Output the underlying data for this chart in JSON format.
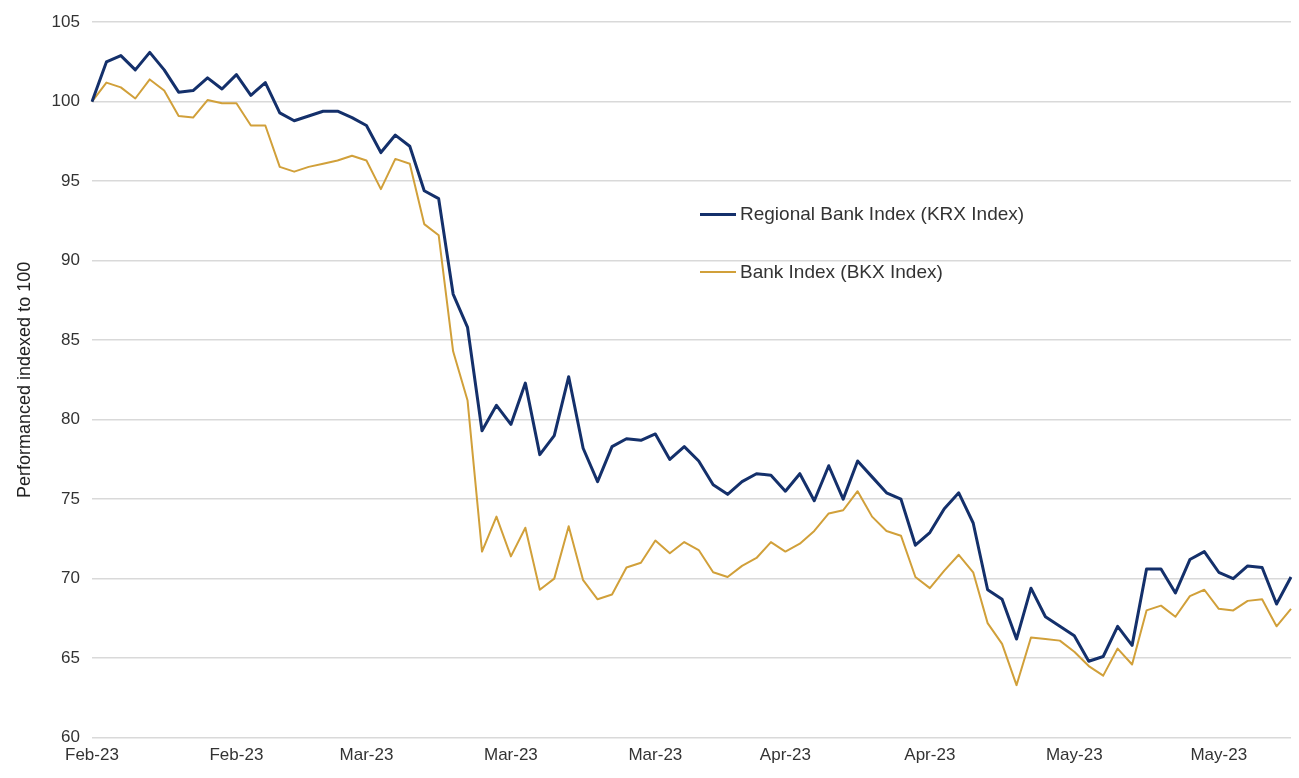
{
  "chart_data": {
    "type": "line",
    "ylabel": "Performanced indexed to 100",
    "categories": [
      "Feb-23",
      null,
      null,
      null,
      null,
      null,
      null,
      null,
      null,
      null,
      "Feb-23",
      null,
      null,
      null,
      null,
      null,
      null,
      null,
      null,
      "Mar-23",
      null,
      null,
      null,
      null,
      null,
      null,
      null,
      null,
      null,
      "Mar-23",
      null,
      null,
      null,
      null,
      null,
      null,
      null,
      null,
      null,
      "Mar-23",
      null,
      null,
      null,
      null,
      null,
      null,
      null,
      null,
      "Apr-23",
      null,
      null,
      null,
      null,
      null,
      null,
      null,
      null,
      null,
      "Apr-23",
      null,
      null,
      null,
      null,
      null,
      null,
      null,
      null,
      null,
      "May-23",
      null,
      null,
      null,
      null,
      null,
      null,
      null,
      null,
      null,
      "May-23",
      null,
      null,
      null,
      null,
      null
    ],
    "series": [
      {
        "name": "Regional Bank Index (KRX Index)",
        "color": "#14306b",
        "values": [
          100,
          102.5,
          102.9,
          102.0,
          103.1,
          102.0,
          100.6,
          100.7,
          101.5,
          100.8,
          101.7,
          100.4,
          101.2,
          99.3,
          98.8,
          99.1,
          99.4,
          99.4,
          99.0,
          98.5,
          96.8,
          97.9,
          97.2,
          94.4,
          93.9,
          87.9,
          85.8,
          79.3,
          80.9,
          79.7,
          82.3,
          77.8,
          79.0,
          82.7,
          78.2,
          76.1,
          78.3,
          78.8,
          78.7,
          79.1,
          77.5,
          78.3,
          77.4,
          75.9,
          75.3,
          76.1,
          76.6,
          76.5,
          75.5,
          76.6,
          74.9,
          77.1,
          75.0,
          77.4,
          76.4,
          75.4,
          75.0,
          72.1,
          72.9,
          74.4,
          75.4,
          73.5,
          69.3,
          68.7,
          66.2,
          69.4,
          67.6,
          67.0,
          66.4,
          64.8,
          65.1,
          67.0,
          65.8,
          70.6,
          70.6,
          69.1,
          71.2,
          71.7,
          70.4,
          70.0,
          70.8,
          70.7,
          68.4,
          70.1
        ]
      },
      {
        "name": "Bank Index (BKX Index)",
        "color": "#d1a03a",
        "values": [
          100,
          101.2,
          100.9,
          100.2,
          101.4,
          100.7,
          99.1,
          99.0,
          100.1,
          99.9,
          99.9,
          98.5,
          98.5,
          95.9,
          95.6,
          95.9,
          96.1,
          96.3,
          96.6,
          96.3,
          94.5,
          96.4,
          96.1,
          92.3,
          91.6,
          84.3,
          81.2,
          71.7,
          73.9,
          71.4,
          73.2,
          69.3,
          70.0,
          73.3,
          69.9,
          68.7,
          69.0,
          70.7,
          71.0,
          72.4,
          71.6,
          72.3,
          71.8,
          70.4,
          70.1,
          70.8,
          71.3,
          72.3,
          71.7,
          72.2,
          73.0,
          74.1,
          74.3,
          75.5,
          73.9,
          73.0,
          72.7,
          70.1,
          69.4,
          70.5,
          71.5,
          70.4,
          67.2,
          65.9,
          63.3,
          66.3,
          66.2,
          66.1,
          65.4,
          64.5,
          63.9,
          65.6,
          64.6,
          68.0,
          68.3,
          67.6,
          68.9,
          69.3,
          68.1,
          68.0,
          68.6,
          68.7,
          67.0,
          68.1
        ]
      }
    ],
    "ylim": [
      60,
      105
    ],
    "yticks": [
      60,
      65,
      70,
      75,
      80,
      85,
      90,
      95,
      100,
      105
    ],
    "grid": "y",
    "legend": "top right",
    "marker": "none",
    "line_style": "solid"
  }
}
